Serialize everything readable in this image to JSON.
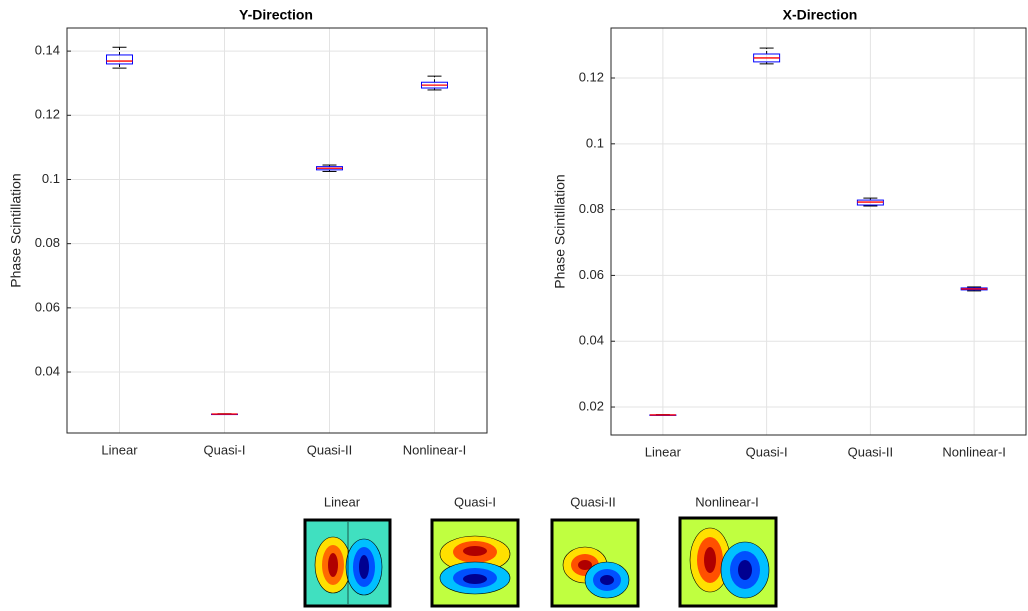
{
  "chart_data": [
    {
      "type": "box",
      "title": "Y-Direction",
      "y_label": "Phase Scintillation",
      "categories": [
        "Linear",
        "Quasi-I",
        "Quasi-II",
        "Nonlinear-I"
      ],
      "boxes": [
        {
          "min": 0.1347,
          "q1": 0.136,
          "median": 0.1369,
          "q3": 0.1388,
          "max": 0.1412
        },
        {
          "min": 0.0268,
          "q1": 0.0269,
          "median": 0.0269,
          "q3": 0.0269,
          "max": 0.027
        },
        {
          "min": 0.1025,
          "q1": 0.103,
          "median": 0.1035,
          "q3": 0.104,
          "max": 0.1045
        },
        {
          "min": 0.1279,
          "q1": 0.1285,
          "median": 0.1294,
          "q3": 0.1303,
          "max": 0.1322
        }
      ],
      "ylim": [
        0.021,
        0.1472
      ],
      "yticks": [
        0.04,
        0.06,
        0.08,
        0.1,
        0.12,
        0.14
      ],
      "grid": true,
      "box_color": "#0000ff",
      "median_color": "#ff0000",
      "whisker_color": "#000000"
    },
    {
      "type": "box",
      "title": "X-Direction",
      "y_label": "Phase Scintillation",
      "categories": [
        "Linear",
        "Quasi-I",
        "Quasi-II",
        "Nonlinear-I"
      ],
      "boxes": [
        {
          "min": 0.0175,
          "q1": 0.0176,
          "median": 0.0176,
          "q3": 0.0176,
          "max": 0.0177
        },
        {
          "min": 0.1243,
          "q1": 0.1249,
          "median": 0.1261,
          "q3": 0.1273,
          "max": 0.1291
        },
        {
          "min": 0.0811,
          "q1": 0.0814,
          "median": 0.0823,
          "q3": 0.0829,
          "max": 0.0835
        },
        {
          "min": 0.0553,
          "q1": 0.0556,
          "median": 0.0559,
          "q3": 0.0562,
          "max": 0.0565
        }
      ],
      "ylim": [
        0.0115,
        0.1352
      ],
      "yticks": [
        0.02,
        0.04,
        0.06,
        0.08,
        0.1,
        0.12
      ],
      "grid": true,
      "box_color": "#0000ff",
      "median_color": "#ff0000",
      "whisker_color": "#000000"
    }
  ],
  "mode_panels": {
    "labels": [
      "Linear",
      "Quasi-I",
      "Quasi-II",
      "Nonlinear-I"
    ]
  }
}
